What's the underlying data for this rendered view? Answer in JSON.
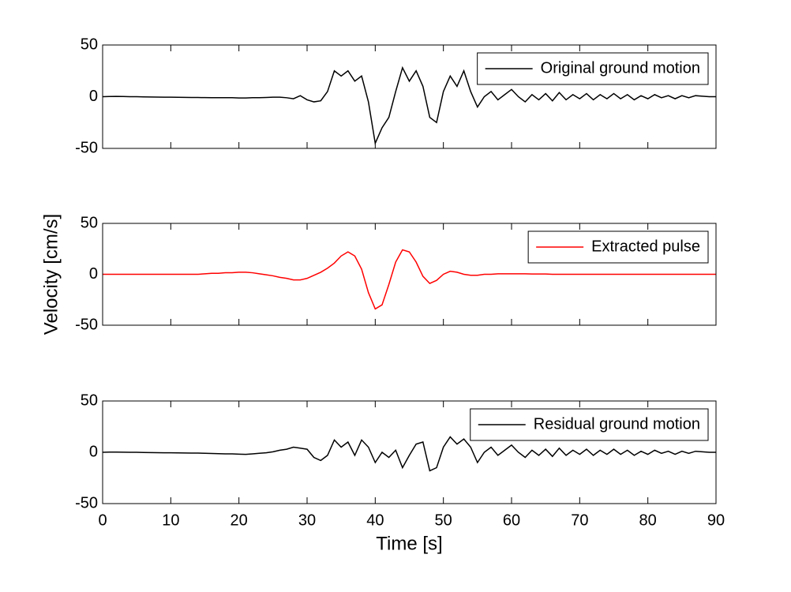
{
  "chart_data": [
    {
      "type": "line",
      "legend": "northeast",
      "show_xtick_labels": false,
      "xlim": [
        0,
        90
      ],
      "xticks": [
        0,
        10,
        20,
        30,
        40,
        50,
        60,
        70,
        80,
        90
      ],
      "ylim": [
        -50,
        50
      ],
      "yticks": [
        -50,
        0,
        50
      ],
      "x": [
        0,
        1,
        2,
        3,
        4,
        5,
        6,
        7,
        8,
        9,
        10,
        11,
        12,
        13,
        14,
        15,
        16,
        17,
        18,
        19,
        20,
        21,
        22,
        23,
        24,
        25,
        26,
        27,
        28,
        29,
        30,
        31,
        32,
        33,
        34,
        35,
        36,
        37,
        38,
        39,
        40,
        41,
        42,
        43,
        44,
        45,
        46,
        47,
        48,
        49,
        50,
        51,
        52,
        53,
        54,
        55,
        56,
        57,
        58,
        59,
        60,
        61,
        62,
        63,
        64,
        65,
        66,
        67,
        68,
        69,
        70,
        71,
        72,
        73,
        74,
        75,
        76,
        77,
        78,
        79,
        80,
        81,
        82,
        83,
        84,
        85,
        86,
        87,
        88,
        89,
        90
      ],
      "series": [
        {
          "name": "Original ground motion",
          "color": "#000000",
          "values": [
            0,
            0.2,
            0.3,
            0.2,
            0,
            0,
            -0.2,
            -0.3,
            -0.4,
            -0.5,
            -0.5,
            -0.6,
            -0.7,
            -0.8,
            -0.8,
            -0.9,
            -1,
            -1,
            -1,
            -1,
            -1.2,
            -1.2,
            -1,
            -1,
            -0.8,
            -0.5,
            -0.5,
            -1,
            -2,
            1,
            -3,
            -5,
            -4,
            5,
            25,
            20,
            25,
            15,
            20,
            -5,
            -45,
            -30,
            -20,
            5,
            28,
            15,
            25,
            10,
            -20,
            -25,
            5,
            20,
            10,
            25,
            5,
            -10,
            0,
            5,
            -3,
            2,
            7,
            0,
            -5,
            2,
            -3,
            3,
            -4,
            4,
            -3,
            2,
            -2,
            3,
            -3,
            2,
            -2,
            3,
            -2,
            2,
            -3,
            1,
            -2,
            2,
            -1,
            1,
            -2,
            1,
            -1,
            1,
            0.5,
            0,
            0
          ]
        }
      ]
    },
    {
      "type": "line",
      "legend": "northeast",
      "show_xtick_labels": false,
      "ylabel": "Velocity [cm/s]",
      "xlim": [
        0,
        90
      ],
      "xticks": [
        0,
        10,
        20,
        30,
        40,
        50,
        60,
        70,
        80,
        90
      ],
      "ylim": [
        -50,
        50
      ],
      "yticks": [
        -50,
        0,
        50
      ],
      "x": [
        0,
        1,
        2,
        3,
        4,
        5,
        6,
        7,
        8,
        9,
        10,
        11,
        12,
        13,
        14,
        15,
        16,
        17,
        18,
        19,
        20,
        21,
        22,
        23,
        24,
        25,
        26,
        27,
        28,
        29,
        30,
        31,
        32,
        33,
        34,
        35,
        36,
        37,
        38,
        39,
        40,
        41,
        42,
        43,
        44,
        45,
        46,
        47,
        48,
        49,
        50,
        51,
        52,
        53,
        54,
        55,
        56,
        57,
        58,
        59,
        60,
        61,
        62,
        63,
        64,
        65,
        66,
        67,
        68,
        69,
        70,
        71,
        72,
        73,
        74,
        75,
        76,
        77,
        78,
        79,
        80,
        81,
        82,
        83,
        84,
        85,
        86,
        87,
        88,
        89,
        90
      ],
      "series": [
        {
          "name": "Extracted pulse",
          "color": "#ff0000",
          "values": [
            0,
            0,
            0,
            0,
            0,
            0,
            0,
            0,
            0,
            0,
            0,
            0,
            0,
            0,
            0,
            0.5,
            1,
            1,
            1.5,
            1.5,
            2,
            2,
            1.5,
            0.5,
            -0.5,
            -1.5,
            -3,
            -4,
            -5.5,
            -5.5,
            -4,
            -1,
            2,
            6,
            11,
            18,
            22,
            18,
            5,
            -18,
            -34,
            -30,
            -10,
            12,
            24,
            22,
            12,
            -2,
            -9,
            -6,
            0,
            3,
            2,
            0,
            -1,
            -1,
            0,
            0,
            0.5,
            0.5,
            0.5,
            0.5,
            0.5,
            0.3,
            0.3,
            0.3,
            0,
            0,
            0,
            0,
            0,
            0,
            0,
            0,
            0,
            0,
            0,
            0,
            0,
            0,
            0,
            0,
            0,
            0,
            0,
            0,
            0,
            0,
            0,
            0,
            0
          ]
        }
      ]
    },
    {
      "type": "line",
      "legend": "northeast",
      "show_xtick_labels": true,
      "xlabel": "Time [s]",
      "xlim": [
        0,
        90
      ],
      "xticks": [
        0,
        10,
        20,
        30,
        40,
        50,
        60,
        70,
        80,
        90
      ],
      "ylim": [
        -50,
        50
      ],
      "yticks": [
        -50,
        0,
        50
      ],
      "x": [
        0,
        1,
        2,
        3,
        4,
        5,
        6,
        7,
        8,
        9,
        10,
        11,
        12,
        13,
        14,
        15,
        16,
        17,
        18,
        19,
        20,
        21,
        22,
        23,
        24,
        25,
        26,
        27,
        28,
        29,
        30,
        31,
        32,
        33,
        34,
        35,
        36,
        37,
        38,
        39,
        40,
        41,
        42,
        43,
        44,
        45,
        46,
        47,
        48,
        49,
        50,
        51,
        52,
        53,
        54,
        55,
        56,
        57,
        58,
        59,
        60,
        61,
        62,
        63,
        64,
        65,
        66,
        67,
        68,
        69,
        70,
        71,
        72,
        73,
        74,
        75,
        76,
        77,
        78,
        79,
        80,
        81,
        82,
        83,
        84,
        85,
        86,
        87,
        88,
        89,
        90
      ],
      "series": [
        {
          "name": "Residual ground motion",
          "color": "#000000",
          "values": [
            0,
            0.2,
            0.2,
            0.1,
            0,
            0,
            -0.2,
            -0.3,
            -0.4,
            -0.5,
            -0.5,
            -0.6,
            -0.7,
            -0.8,
            -0.8,
            -1,
            -1.2,
            -1.3,
            -1.5,
            -1.5,
            -1.8,
            -2,
            -1.5,
            -1,
            -0.5,
            0.5,
            2,
            3,
            5,
            4,
            3,
            -5,
            -8,
            -3,
            12,
            5,
            10,
            -3,
            12,
            5,
            -10,
            0,
            -5,
            2,
            -15,
            -3,
            8,
            10,
            -18,
            -15,
            5,
            15,
            8,
            13,
            5,
            -10,
            0,
            5,
            -3,
            2,
            7,
            0,
            -5,
            2,
            -3,
            3,
            -4,
            4,
            -3,
            2,
            -2,
            3,
            -3,
            2,
            -2,
            3,
            -2,
            2,
            -3,
            1,
            -2,
            2,
            -1,
            1,
            -2,
            1,
            -1,
            1,
            0.5,
            0,
            0
          ]
        }
      ]
    }
  ]
}
